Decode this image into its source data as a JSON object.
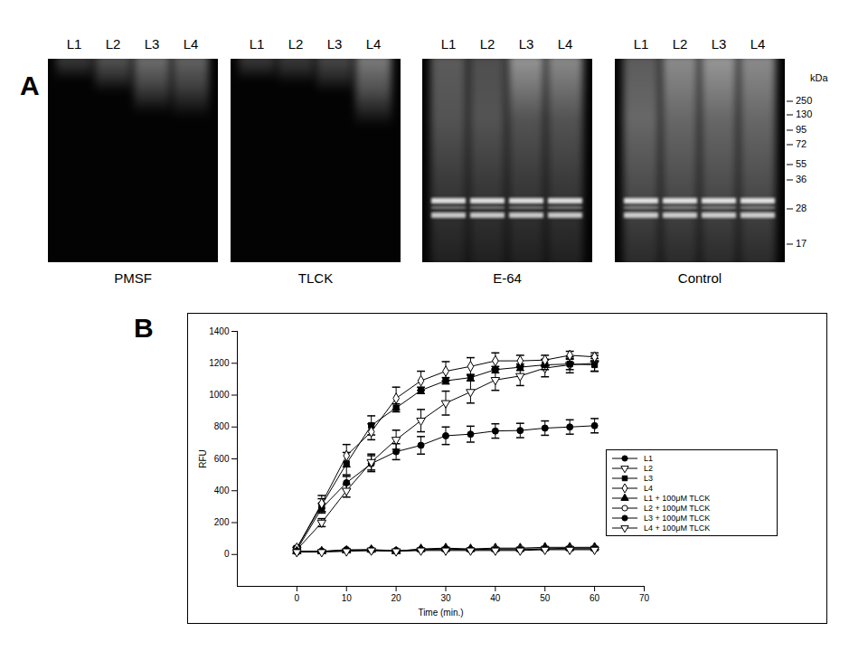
{
  "figure": {
    "panel_a": {
      "label": "A",
      "lanes": [
        "L1",
        "L2",
        "L3",
        "L4"
      ],
      "gels": [
        "PMSF",
        "TLCK",
        "E-64",
        "Control"
      ],
      "marker_unit": "kDa",
      "markers": [
        250,
        130,
        95,
        72,
        55,
        36,
        28,
        17
      ]
    },
    "panel_b": {
      "label": "B"
    }
  },
  "chart_data": {
    "type": "line",
    "x_label": "Time (min.)",
    "y_label": "RFU",
    "x": [
      0,
      5,
      10,
      15,
      20,
      25,
      30,
      35,
      40,
      45,
      50,
      55,
      60
    ],
    "xlim": [
      -12,
      70
    ],
    "xticks": [
      0,
      10,
      20,
      30,
      40,
      50,
      60,
      70
    ],
    "ylim": [
      -200,
      1400
    ],
    "yticks": [
      0,
      200,
      400,
      600,
      800,
      1000,
      1200,
      1400
    ],
    "grid": false,
    "legend": "right",
    "series": [
      {
        "name": "L1",
        "color": "#000000",
        "marker": "filled-circle",
        "values": [
          30,
          290,
          450,
          570,
          645,
          685,
          745,
          755,
          775,
          778,
          793,
          800,
          808
        ],
        "errors": [
          10,
          30,
          40,
          50,
          50,
          55,
          55,
          50,
          45,
          45,
          45,
          45,
          45
        ]
      },
      {
        "name": "L2",
        "color": "#000000",
        "marker": "open-triangle-down",
        "values": [
          30,
          200,
          400,
          580,
          720,
          840,
          950,
          1020,
          1095,
          1120,
          1170,
          1190,
          1200
        ],
        "errors": [
          10,
          25,
          40,
          50,
          60,
          70,
          75,
          70,
          65,
          60,
          55,
          50,
          50
        ]
      },
      {
        "name": "L3",
        "color": "#000000",
        "marker": "filled-square",
        "values": [
          40,
          310,
          570,
          810,
          920,
          1030,
          1090,
          1110,
          1160,
          1175,
          1190,
          1195,
          1190
        ],
        "errors": [
          10,
          40,
          70,
          60,
          25,
          20,
          20,
          20,
          20,
          20,
          30,
          35,
          40
        ]
      },
      {
        "name": "L4",
        "color": "#000000",
        "marker": "open-diamond",
        "values": [
          40,
          320,
          620,
          770,
          980,
          1090,
          1150,
          1180,
          1215,
          1215,
          1220,
          1250,
          1240
        ],
        "errors": [
          10,
          50,
          70,
          50,
          70,
          60,
          60,
          55,
          50,
          35,
          30,
          25,
          25
        ]
      },
      {
        "name": "L1 + 100μM TLCK",
        "color": "#000000",
        "marker": "filled-triangle",
        "values": [
          20,
          20,
          25,
          30,
          20,
          35,
          40,
          35,
          40,
          40,
          45,
          45,
          45
        ],
        "errors": [
          5,
          5,
          5,
          5,
          5,
          5,
          5,
          5,
          5,
          5,
          5,
          5,
          5
        ]
      },
      {
        "name": "L2 + 100μM TLCK",
        "color": "#000000",
        "marker": "open-circle",
        "values": [
          15,
          20,
          25,
          25,
          20,
          30,
          30,
          30,
          35,
          35,
          35,
          40,
          40
        ],
        "errors": [
          5,
          5,
          5,
          5,
          5,
          5,
          5,
          5,
          5,
          5,
          5,
          5,
          5
        ]
      },
      {
        "name": "L3 + 100μM TLCK",
        "color": "#000000",
        "marker": "filled-circle",
        "values": [
          20,
          20,
          30,
          30,
          25,
          30,
          35,
          30,
          30,
          30,
          35,
          35,
          35
        ],
        "errors": [
          5,
          5,
          5,
          5,
          5,
          5,
          5,
          5,
          5,
          5,
          5,
          5,
          5
        ]
      },
      {
        "name": "L4 + 100μM TLCK",
        "color": "#000000",
        "marker": "open-triangle-down",
        "values": [
          15,
          15,
          20,
          25,
          20,
          25,
          25,
          25,
          25,
          25,
          30,
          30,
          30
        ],
        "errors": [
          5,
          5,
          5,
          5,
          5,
          5,
          5,
          5,
          5,
          5,
          5,
          5,
          5
        ]
      }
    ]
  }
}
